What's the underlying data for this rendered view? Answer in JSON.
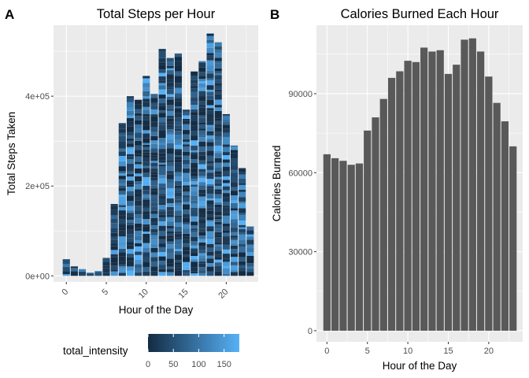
{
  "panels": {
    "a_tag": "A",
    "b_tag": "B"
  },
  "chart_data": [
    {
      "type": "bar",
      "title": "Total Steps per Hour",
      "xlabel": "Hour of the Day",
      "ylabel": "Total Steps Taken",
      "x": [
        0,
        1,
        2,
        3,
        4,
        5,
        6,
        7,
        8,
        9,
        10,
        11,
        12,
        13,
        14,
        15,
        16,
        17,
        18,
        19,
        20,
        21,
        22,
        23
      ],
      "values": [
        37000,
        21000,
        15000,
        7000,
        11000,
        40000,
        160000,
        340000,
        400000,
        392000,
        445000,
        405000,
        505000,
        485000,
        495000,
        370000,
        455000,
        478000,
        540000,
        520000,
        360000,
        290000,
        240000,
        110000
      ],
      "ylim": [
        -13500,
        558000
      ],
      "xlim": [
        -1.6,
        24.0
      ],
      "yticks": [
        0,
        200000,
        400000
      ],
      "ytick_labels": [
        "0e+00",
        "2e+05",
        "4e+05"
      ],
      "xticks": [
        0,
        5,
        10,
        15,
        20
      ],
      "xtick_labels": [
        "0",
        "5",
        "10",
        "15",
        "20"
      ],
      "stack_segment_steps": 8000,
      "color_low": "#132b43",
      "color_high": "#56b1f7",
      "legend": {
        "title": "total_intensity",
        "range": [
          0,
          180
        ],
        "ticks": [
          0,
          50,
          100,
          150
        ],
        "tick_labels": [
          "0",
          "50",
          "100",
          "150"
        ],
        "placement": "bottom"
      }
    },
    {
      "type": "bar",
      "title": "Calories Burned Each Hour",
      "xlabel": "Hour of the Day",
      "ylabel": "Calories Burned",
      "x": [
        0,
        1,
        2,
        3,
        4,
        5,
        6,
        7,
        8,
        9,
        10,
        11,
        12,
        13,
        14,
        15,
        16,
        17,
        18,
        19,
        20,
        21,
        22,
        23
      ],
      "values": [
        67000,
        65500,
        64500,
        63000,
        63500,
        76000,
        81000,
        88000,
        96000,
        98500,
        102500,
        102000,
        107500,
        106000,
        106500,
        97500,
        101000,
        110500,
        111000,
        106000,
        96500,
        86500,
        79500,
        70000
      ],
      "ylim": [
        -4200,
        116000
      ],
      "xlim": [
        -1.3,
        24.2
      ],
      "yticks": [
        0,
        30000,
        60000,
        90000
      ],
      "ytick_labels": [
        "0",
        "30000",
        "60000",
        "90000"
      ],
      "xticks": [
        0,
        5,
        10,
        15,
        20
      ],
      "xtick_labels": [
        "0",
        "5",
        "10",
        "15",
        "20"
      ],
      "bar_color": "#595959"
    }
  ]
}
